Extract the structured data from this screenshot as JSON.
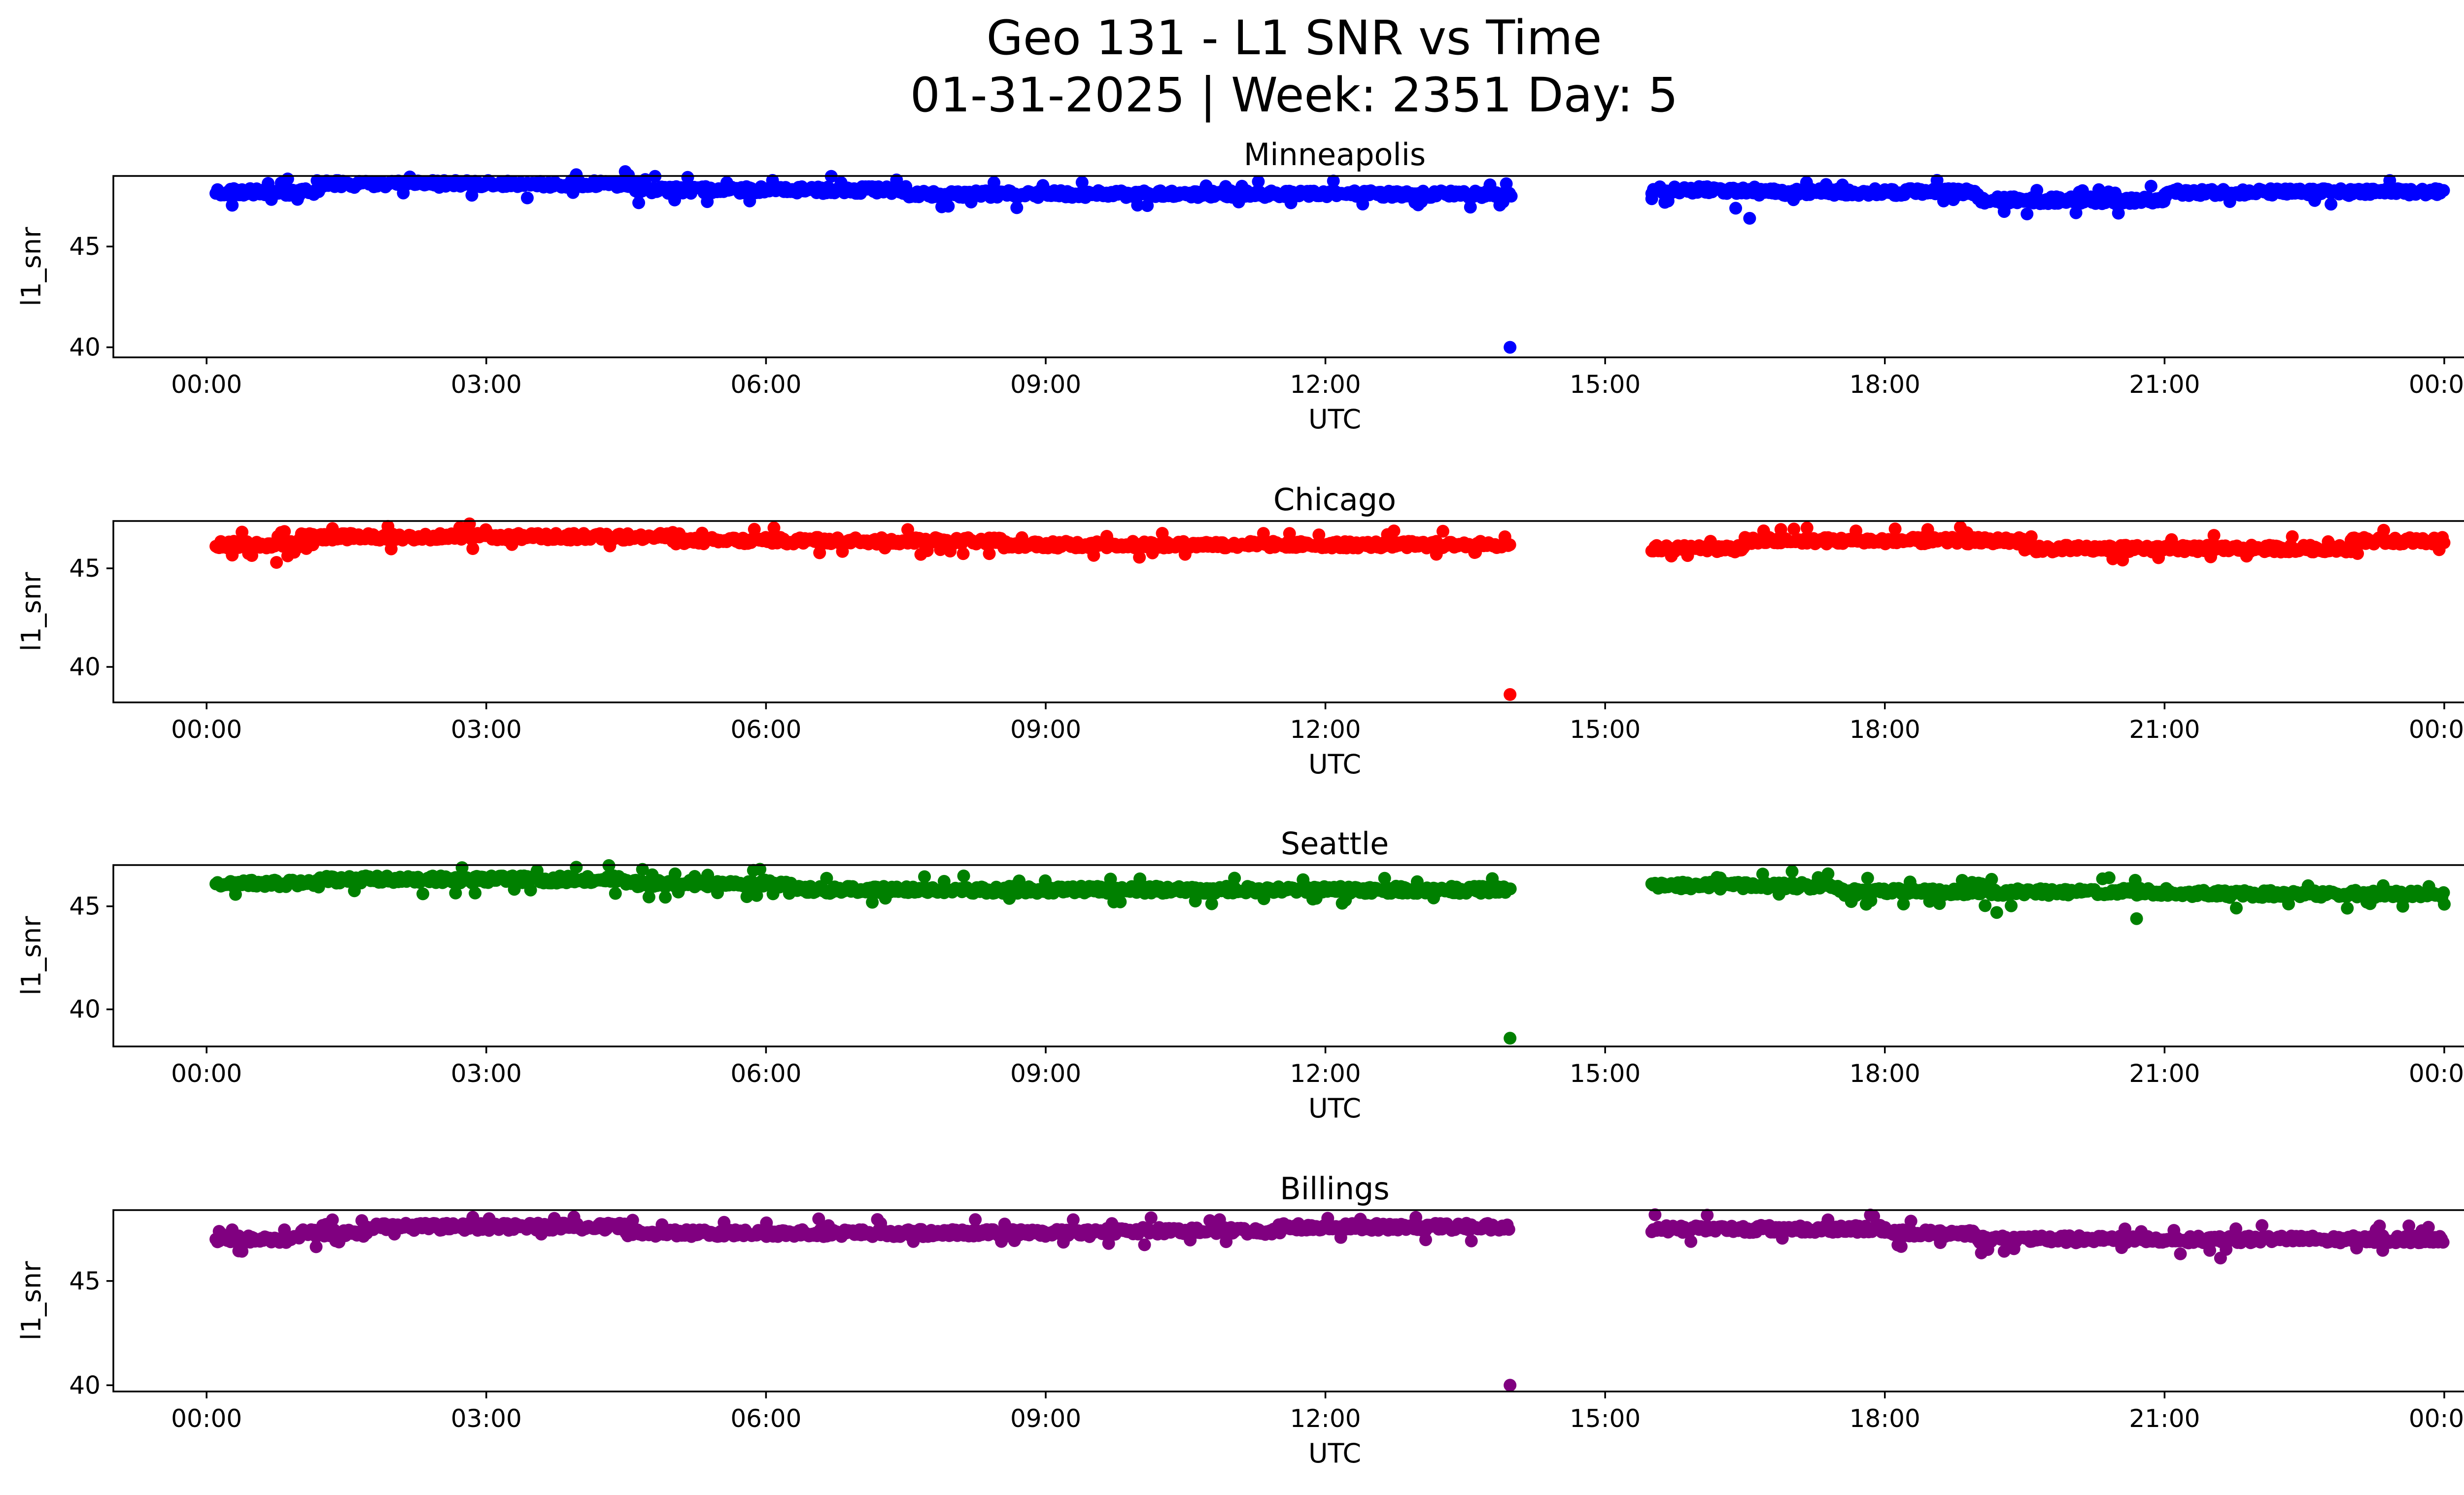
{
  "chart_data": {
    "type": "scatter",
    "title_line1": "Geo 131 - L1 SNR vs Time",
    "title_line2": "01-31-2025 | Week: 2351 Day: 5",
    "xlabel": "UTC",
    "ylabel": "l1_snr",
    "x_ticks": [
      {
        "hour": 0,
        "label": "00:00"
      },
      {
        "hour": 3,
        "label": "03:00"
      },
      {
        "hour": 6,
        "label": "06:00"
      },
      {
        "hour": 9,
        "label": "09:00"
      },
      {
        "hour": 12,
        "label": "12:00"
      },
      {
        "hour": 15,
        "label": "15:00"
      },
      {
        "hour": 18,
        "label": "18:00"
      },
      {
        "hour": 21,
        "label": "21:00"
      },
      {
        "hour": 24,
        "label": "00:00"
      }
    ],
    "xlim_hours": [
      -1.0,
      25.2
    ],
    "data_gap_hours": [
      14.0,
      15.5
    ],
    "panels": [
      {
        "name": "Minneapolis",
        "color": "#0000ff",
        "ylim": [
          39.5,
          48.5
        ],
        "y_ticks": [
          {
            "value": 40,
            "label": "40"
          },
          {
            "value": 45,
            "label": "45"
          }
        ],
        "outliers": [
          {
            "hour": 13.98,
            "value": 40.0
          }
        ],
        "segments": [
          {
            "start": 0.1,
            "end": 1.2,
            "level": 47.7
          },
          {
            "start": 1.2,
            "end": 4.6,
            "level": 48.1
          },
          {
            "start": 4.6,
            "end": 7.5,
            "level": 47.8
          },
          {
            "start": 7.5,
            "end": 13.98,
            "level": 47.6
          },
          {
            "start": 15.5,
            "end": 16.6,
            "level": 47.8
          },
          {
            "start": 16.6,
            "end": 19.0,
            "level": 47.7
          },
          {
            "start": 19.0,
            "end": 21.0,
            "level": 47.3
          },
          {
            "start": 21.0,
            "end": 24.0,
            "level": 47.7
          }
        ],
        "dips": [
          {
            "hour": 16.55,
            "value": 46.4
          },
          {
            "hour": 16.4,
            "value": 46.9
          },
          {
            "hour": 20.5,
            "value": 47.0
          }
        ]
      },
      {
        "name": "Chicago",
        "color": "#ff0000",
        "ylim": [
          38.2,
          47.4
        ],
        "y_ticks": [
          {
            "value": 40,
            "label": "40"
          },
          {
            "value": 45,
            "label": "45"
          }
        ],
        "outliers": [
          {
            "hour": 13.98,
            "value": 38.6
          }
        ],
        "segments": [
          {
            "start": 0.1,
            "end": 1.0,
            "level": 46.2
          },
          {
            "start": 1.0,
            "end": 5.0,
            "level": 46.6
          },
          {
            "start": 5.0,
            "end": 8.5,
            "level": 46.4
          },
          {
            "start": 8.5,
            "end": 13.98,
            "level": 46.2
          },
          {
            "start": 15.5,
            "end": 16.5,
            "level": 46.0
          },
          {
            "start": 16.5,
            "end": 19.5,
            "level": 46.4
          },
          {
            "start": 19.5,
            "end": 23.0,
            "level": 46.0
          },
          {
            "start": 23.0,
            "end": 24.0,
            "level": 46.4
          }
        ],
        "dips": [
          {
            "hour": 0.75,
            "value": 45.3
          },
          {
            "hour": 13.6,
            "value": 45.8
          },
          {
            "hour": 16.7,
            "value": 46.9
          }
        ]
      },
      {
        "name": "Seattle",
        "color": "#008000",
        "ylim": [
          38.2,
          47.0
        ],
        "y_ticks": [
          {
            "value": 40,
            "label": "40"
          },
          {
            "value": 45,
            "label": "45"
          }
        ],
        "outliers": [
          {
            "hour": 13.98,
            "value": 38.6
          }
        ],
        "segments": [
          {
            "start": 0.1,
            "end": 1.2,
            "level": 46.1
          },
          {
            "start": 1.2,
            "end": 4.5,
            "level": 46.3
          },
          {
            "start": 4.5,
            "end": 6.3,
            "level": 46.1
          },
          {
            "start": 6.3,
            "end": 13.98,
            "level": 45.8
          },
          {
            "start": 15.5,
            "end": 17.5,
            "level": 46.0
          },
          {
            "start": 17.5,
            "end": 21.0,
            "level": 45.7
          },
          {
            "start": 21.0,
            "end": 24.0,
            "level": 45.6
          }
        ],
        "dips": [
          {
            "hour": 19.2,
            "value": 44.7
          },
          {
            "hour": 20.7,
            "value": 44.4
          },
          {
            "hour": 17.8,
            "value": 45.1
          },
          {
            "hour": 24.0,
            "value": 45.1
          }
        ]
      },
      {
        "name": "Billings",
        "color": "#800080",
        "ylim": [
          39.7,
          48.4
        ],
        "y_ticks": [
          {
            "value": 40,
            "label": "40"
          },
          {
            "value": 45,
            "label": "45"
          }
        ],
        "outliers": [
          {
            "hour": 13.98,
            "value": 40.0
          }
        ],
        "segments": [
          {
            "start": 0.1,
            "end": 1.0,
            "level": 47.0
          },
          {
            "start": 1.0,
            "end": 1.7,
            "level": 47.3
          },
          {
            "start": 1.7,
            "end": 4.5,
            "level": 47.6
          },
          {
            "start": 4.5,
            "end": 9.5,
            "level": 47.3
          },
          {
            "start": 9.5,
            "end": 11.5,
            "level": 47.4
          },
          {
            "start": 11.5,
            "end": 13.98,
            "level": 47.6
          },
          {
            "start": 15.5,
            "end": 18.0,
            "level": 47.5
          },
          {
            "start": 18.0,
            "end": 19.0,
            "level": 47.3
          },
          {
            "start": 19.0,
            "end": 24.0,
            "level": 47.0
          }
        ],
        "dips": [
          {
            "hour": 21.6,
            "value": 46.1
          },
          {
            "hour": 0.15,
            "value": 47.3
          }
        ]
      }
    ]
  }
}
